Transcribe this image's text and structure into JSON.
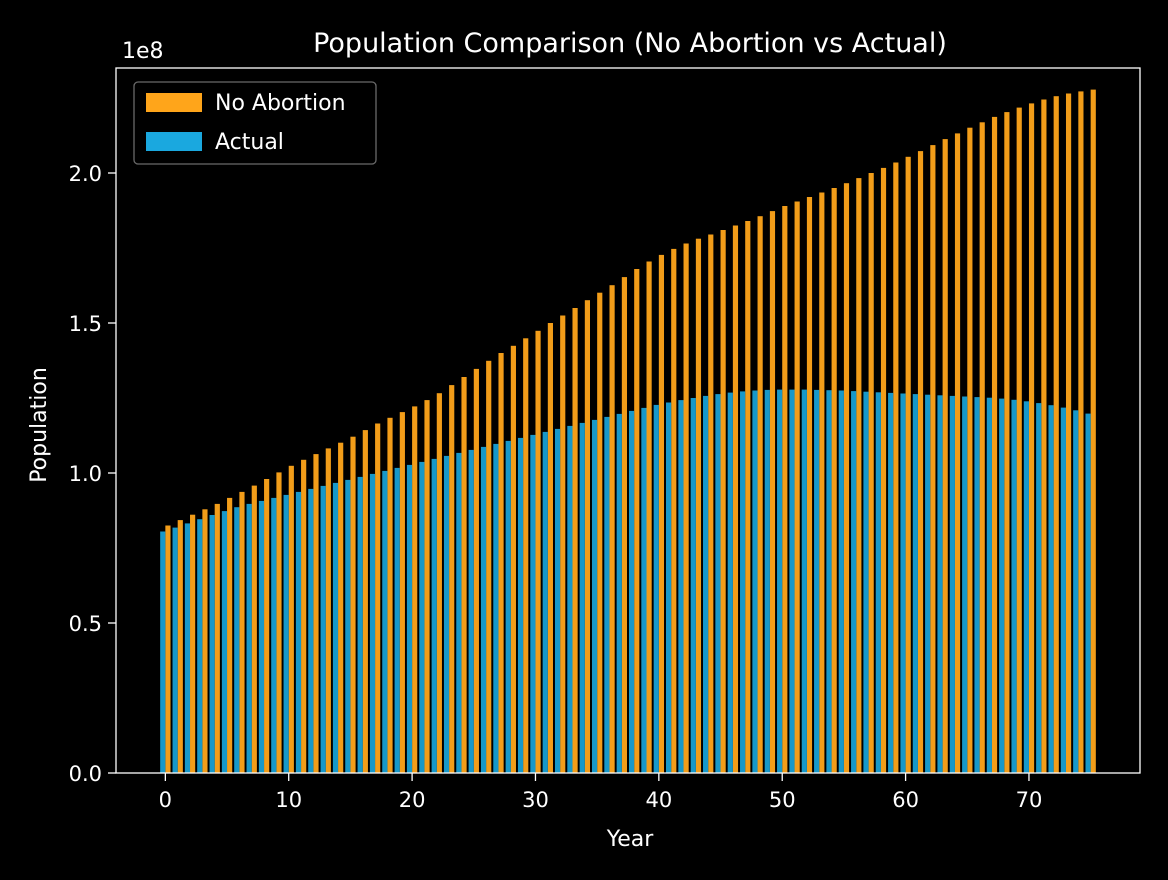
{
  "chart_data": {
    "type": "bar",
    "title": "Population Comparison (No Abortion vs Actual)",
    "xlabel": "Year",
    "ylabel": "Population",
    "y_offset_label": "1e8",
    "y_scale": 100000000,
    "xlim": [
      -4,
      79
    ],
    "ylim": [
      0,
      2.35
    ],
    "x_ticks": [
      0,
      10,
      20,
      30,
      40,
      50,
      60,
      70
    ],
    "y_ticks": [
      0.0,
      0.5,
      1.0,
      1.5,
      2.0
    ],
    "y_tick_labels": [
      "0.0",
      "0.5",
      "1.0",
      "1.5",
      "2.0"
    ],
    "legend_position": "top-left",
    "grid": false,
    "x": [
      0,
      1,
      2,
      3,
      4,
      5,
      6,
      7,
      8,
      9,
      10,
      11,
      12,
      13,
      14,
      15,
      16,
      17,
      18,
      19,
      20,
      21,
      22,
      23,
      24,
      25,
      26,
      27,
      28,
      29,
      30,
      31,
      32,
      33,
      34,
      35,
      36,
      37,
      38,
      39,
      40,
      41,
      42,
      43,
      44,
      45,
      46,
      47,
      48,
      49,
      50,
      51,
      52,
      53,
      54,
      55,
      56,
      57,
      58,
      59,
      60,
      61,
      62,
      63,
      64,
      65,
      66,
      67,
      68,
      69,
      70,
      71,
      72,
      73,
      74,
      75
    ],
    "series": [
      {
        "name": "No Abortion",
        "color": "#ffa51a",
        "values": [
          0.825,
          0.843,
          0.861,
          0.879,
          0.897,
          0.917,
          0.937,
          0.958,
          0.98,
          1.002,
          1.024,
          1.044,
          1.063,
          1.082,
          1.101,
          1.121,
          1.143,
          1.165,
          1.184,
          1.203,
          1.222,
          1.243,
          1.266,
          1.293,
          1.32,
          1.347,
          1.374,
          1.4,
          1.424,
          1.449,
          1.474,
          1.5,
          1.525,
          1.55,
          1.576,
          1.601,
          1.626,
          1.653,
          1.68,
          1.705,
          1.727,
          1.747,
          1.765,
          1.781,
          1.795,
          1.81,
          1.825,
          1.84,
          1.856,
          1.873,
          1.89,
          1.905,
          1.92,
          1.935,
          1.95,
          1.966,
          1.983,
          2.0,
          2.017,
          2.035,
          2.054,
          2.073,
          2.093,
          2.113,
          2.132,
          2.151,
          2.169,
          2.187,
          2.203,
          2.218,
          2.232,
          2.245,
          2.256,
          2.265,
          2.272,
          2.278
        ]
      },
      {
        "name": "Actual",
        "color": "#1aa8df",
        "values": [
          0.805,
          0.818,
          0.832,
          0.846,
          0.86,
          0.873,
          0.886,
          0.897,
          0.907,
          0.917,
          0.927,
          0.937,
          0.947,
          0.957,
          0.967,
          0.977,
          0.987,
          0.997,
          1.007,
          1.017,
          1.027,
          1.037,
          1.047,
          1.057,
          1.067,
          1.077,
          1.087,
          1.097,
          1.107,
          1.117,
          1.127,
          1.137,
          1.147,
          1.157,
          1.167,
          1.177,
          1.187,
          1.197,
          1.207,
          1.217,
          1.227,
          1.235,
          1.243,
          1.25,
          1.257,
          1.263,
          1.268,
          1.272,
          1.275,
          1.277,
          1.278,
          1.278,
          1.278,
          1.277,
          1.276,
          1.275,
          1.273,
          1.271,
          1.269,
          1.267,
          1.265,
          1.263,
          1.261,
          1.259,
          1.257,
          1.255,
          1.253,
          1.251,
          1.248,
          1.244,
          1.239,
          1.233,
          1.226,
          1.218,
          1.209,
          1.198
        ]
      }
    ]
  }
}
